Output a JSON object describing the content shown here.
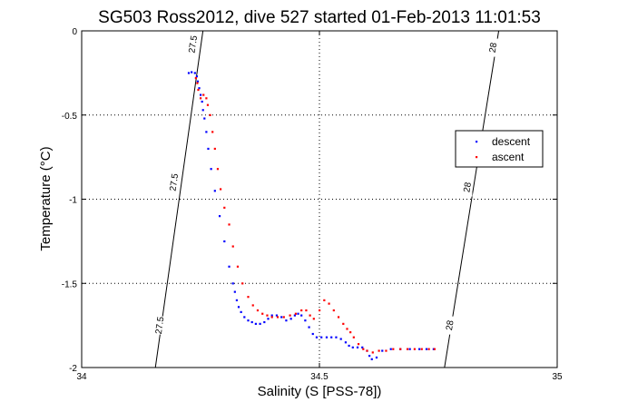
{
  "chart_data": {
    "type": "scatter",
    "title": "SG503 Ross2012, dive 527 started 01-Feb-2013 11:01:53",
    "xlabel": "Salinity (S [PSS-78])",
    "ylabel": "Temperature (°C)",
    "xlim": [
      34,
      35
    ],
    "ylim": [
      -2,
      0
    ],
    "x_ticks": [
      34,
      34.5,
      35
    ],
    "x_tick_labels": [
      "34",
      "34.5",
      "35"
    ],
    "y_ticks": [
      0,
      -0.5,
      -1,
      -1.5,
      -2
    ],
    "y_tick_labels": [
      "0",
      "-0.5",
      "-1",
      "-1.5",
      "-2"
    ],
    "grid": true,
    "grid_style": "dotted",
    "legend_position": "right",
    "isopycnals": [
      {
        "label": "27.5",
        "points": [
          [
            34.255,
            0
          ],
          [
            34.155,
            -2
          ]
        ],
        "label_positions": [
          [
            34.235,
            -0.08
          ],
          [
            34.195,
            -0.9
          ],
          [
            34.165,
            -1.75
          ]
        ]
      },
      {
        "label": "28",
        "points": [
          [
            34.877,
            0
          ],
          [
            34.763,
            -2
          ]
        ],
        "label_positions": [
          [
            34.866,
            -0.1
          ],
          [
            34.812,
            -0.93
          ],
          [
            34.775,
            -1.75
          ]
        ]
      }
    ],
    "series": [
      {
        "name": "descent",
        "color": "#0000ff",
        "marker": "dot",
        "points": [
          [
            34.225,
            -0.25
          ],
          [
            34.231,
            -0.245
          ],
          [
            34.238,
            -0.25
          ],
          [
            34.242,
            -0.27
          ],
          [
            34.244,
            -0.3
          ],
          [
            34.247,
            -0.34
          ],
          [
            34.25,
            -0.38
          ],
          [
            34.253,
            -0.42
          ],
          [
            34.255,
            -0.47
          ],
          [
            34.258,
            -0.52
          ],
          [
            34.262,
            -0.6
          ],
          [
            34.266,
            -0.7
          ],
          [
            34.272,
            -0.82
          ],
          [
            34.28,
            -0.95
          ],
          [
            34.29,
            -1.1
          ],
          [
            34.3,
            -1.25
          ],
          [
            34.31,
            -1.4
          ],
          [
            34.318,
            -1.5
          ],
          [
            34.322,
            -1.55
          ],
          [
            34.326,
            -1.6
          ],
          [
            34.33,
            -1.64
          ],
          [
            34.335,
            -1.67
          ],
          [
            34.342,
            -1.7
          ],
          [
            34.35,
            -1.72
          ],
          [
            34.358,
            -1.73
          ],
          [
            34.366,
            -1.74
          ],
          [
            34.375,
            -1.74
          ],
          [
            34.384,
            -1.73
          ],
          [
            34.392,
            -1.71
          ],
          [
            34.4,
            -1.69
          ],
          [
            34.41,
            -1.69
          ],
          [
            34.42,
            -1.7
          ],
          [
            34.43,
            -1.72
          ],
          [
            34.44,
            -1.71
          ],
          [
            34.448,
            -1.69
          ],
          [
            34.455,
            -1.68
          ],
          [
            34.462,
            -1.69
          ],
          [
            34.47,
            -1.72
          ],
          [
            34.478,
            -1.76
          ],
          [
            34.486,
            -1.8
          ],
          [
            34.494,
            -1.82
          ],
          [
            34.504,
            -1.82
          ],
          [
            34.515,
            -1.82
          ],
          [
            34.525,
            -1.82
          ],
          [
            34.535,
            -1.82
          ],
          [
            34.545,
            -1.83
          ],
          [
            34.555,
            -1.85
          ],
          [
            34.562,
            -1.87
          ],
          [
            34.57,
            -1.88
          ],
          [
            34.58,
            -1.88
          ],
          [
            34.59,
            -1.88
          ],
          [
            34.6,
            -1.9
          ],
          [
            34.605,
            -1.93
          ],
          [
            34.61,
            -1.95
          ],
          [
            34.62,
            -1.94
          ],
          [
            34.632,
            -1.9
          ],
          [
            34.65,
            -1.89
          ],
          [
            34.67,
            -1.89
          ],
          [
            34.69,
            -1.89
          ],
          [
            34.71,
            -1.89
          ],
          [
            34.725,
            -1.89
          ],
          [
            34.74,
            -1.89
          ]
        ]
      },
      {
        "name": "ascent",
        "color": "#ff0000",
        "marker": "dot",
        "points": [
          [
            34.24,
            -0.28
          ],
          [
            34.243,
            -0.31
          ],
          [
            34.245,
            -0.35
          ],
          [
            34.25,
            -0.4
          ],
          [
            34.256,
            -0.38
          ],
          [
            34.262,
            -0.4
          ],
          [
            34.265,
            -0.44
          ],
          [
            34.27,
            -0.5
          ],
          [
            34.275,
            -0.6
          ],
          [
            34.28,
            -0.7
          ],
          [
            34.286,
            -0.82
          ],
          [
            34.292,
            -0.94
          ],
          [
            34.3,
            -1.05
          ],
          [
            34.31,
            -1.15
          ],
          [
            34.318,
            -1.28
          ],
          [
            34.328,
            -1.4
          ],
          [
            34.338,
            -1.5
          ],
          [
            34.35,
            -1.58
          ],
          [
            34.36,
            -1.63
          ],
          [
            34.37,
            -1.66
          ],
          [
            34.38,
            -1.68
          ],
          [
            34.39,
            -1.69
          ],
          [
            34.4,
            -1.7
          ],
          [
            34.412,
            -1.7
          ],
          [
            34.425,
            -1.7
          ],
          [
            34.438,
            -1.69
          ],
          [
            34.45,
            -1.68
          ],
          [
            34.462,
            -1.66
          ],
          [
            34.472,
            -1.66
          ],
          [
            34.48,
            -1.69
          ],
          [
            34.488,
            -1.71
          ],
          [
            34.5,
            -1.66
          ],
          [
            34.51,
            -1.6
          ],
          [
            34.52,
            -1.62
          ],
          [
            34.53,
            -1.66
          ],
          [
            34.54,
            -1.7
          ],
          [
            34.55,
            -1.74
          ],
          [
            34.558,
            -1.77
          ],
          [
            34.565,
            -1.79
          ],
          [
            34.572,
            -1.82
          ],
          [
            34.582,
            -1.86
          ],
          [
            34.592,
            -1.89
          ],
          [
            34.6,
            -1.9
          ],
          [
            34.612,
            -1.91
          ],
          [
            34.625,
            -1.9
          ],
          [
            34.64,
            -1.9
          ],
          [
            34.655,
            -1.89
          ],
          [
            34.67,
            -1.89
          ],
          [
            34.685,
            -1.89
          ],
          [
            34.7,
            -1.89
          ],
          [
            34.715,
            -1.89
          ],
          [
            34.73,
            -1.89
          ],
          [
            34.742,
            -1.89
          ]
        ]
      }
    ]
  }
}
